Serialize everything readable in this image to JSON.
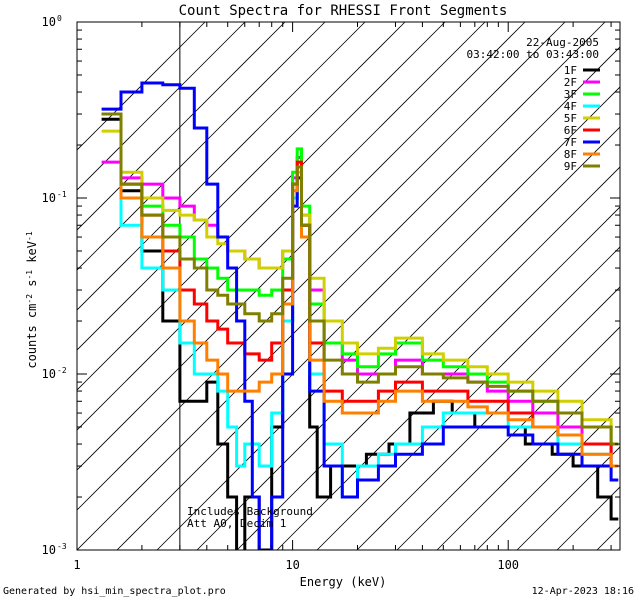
{
  "chart_data": {
    "type": "line",
    "title": "Count Spectra for RHESSI Front Segments",
    "xlabel": "Energy (keV)",
    "ylabel_parts": {
      "a": "counts cm",
      "b": "-2",
      "c": " s",
      "d": "-1",
      "e": " keV",
      "f": "-1"
    },
    "x_scale": "log",
    "y_scale": "log",
    "xlim": [
      1,
      330
    ],
    "ylim": [
      0.001,
      1
    ],
    "x_ticks": [
      {
        "v": 1,
        "label": "1"
      },
      {
        "v": 10,
        "label": "10"
      },
      {
        "v": 100,
        "label": "100"
      }
    ],
    "y_ticks": [
      {
        "v": 1,
        "base": "10",
        "exp": "0"
      },
      {
        "v": 0.1,
        "base": "10",
        "exp": "-1"
      },
      {
        "v": 0.01,
        "base": "10",
        "exp": "-2"
      },
      {
        "v": 0.001,
        "base": "10",
        "exp": "-3"
      }
    ],
    "date_label": "22-Aug-2005",
    "time_label": "03:42:00 to 03:43:00",
    "hatched_below_keV": 3,
    "annotation_lines": [
      "Includes Background",
      "Att A0, Decim 1"
    ],
    "series": [
      {
        "name": "1F",
        "color": "#000000",
        "points": [
          [
            1.3,
            0.28
          ],
          [
            1.6,
            0.11
          ],
          [
            2,
            0.05
          ],
          [
            2.5,
            0.02
          ],
          [
            3,
            0.007
          ],
          [
            3.5,
            0.007
          ],
          [
            4,
            0.009
          ],
          [
            4.5,
            0.004
          ],
          [
            5,
            0.002
          ],
          [
            5.5,
            0.0009
          ],
          [
            6,
            0.002
          ],
          [
            7,
            0.001
          ],
          [
            8,
            0.005
          ],
          [
            9,
            0.02
          ],
          [
            10,
            0.1
          ],
          [
            10.5,
            0.15
          ],
          [
            11,
            0.07
          ],
          [
            12,
            0.005
          ],
          [
            13,
            0.002
          ],
          [
            15,
            0.003
          ],
          [
            18,
            0.003
          ],
          [
            22,
            0.0035
          ],
          [
            28,
            0.004
          ],
          [
            35,
            0.006
          ],
          [
            45,
            0.007
          ],
          [
            55,
            0.006
          ],
          [
            70,
            0.005
          ],
          [
            90,
            0.005
          ],
          [
            120,
            0.004
          ],
          [
            160,
            0.0035
          ],
          [
            200,
            0.003
          ],
          [
            260,
            0.002
          ],
          [
            300,
            0.0015
          ]
        ]
      },
      {
        "name": "2F",
        "color": "#ff00ff",
        "points": [
          [
            1.3,
            0.16
          ],
          [
            1.6,
            0.13
          ],
          [
            2,
            0.12
          ],
          [
            2.5,
            0.1
          ],
          [
            3,
            0.09
          ],
          [
            3.5,
            0.075
          ],
          [
            4,
            0.07
          ],
          [
            4.5,
            0.06
          ],
          [
            5,
            0.05
          ],
          [
            6,
            0.045
          ],
          [
            7,
            0.04
          ],
          [
            8,
            0.04
          ],
          [
            9,
            0.05
          ],
          [
            10,
            0.13
          ],
          [
            10.5,
            0.17
          ],
          [
            11,
            0.08
          ],
          [
            12,
            0.03
          ],
          [
            14,
            0.015
          ],
          [
            17,
            0.012
          ],
          [
            20,
            0.01
          ],
          [
            25,
            0.01
          ],
          [
            30,
            0.012
          ],
          [
            40,
            0.01
          ],
          [
            50,
            0.01
          ],
          [
            65,
            0.009
          ],
          [
            80,
            0.008
          ],
          [
            100,
            0.007
          ],
          [
            130,
            0.006
          ],
          [
            170,
            0.005
          ],
          [
            220,
            0.004
          ],
          [
            300,
            0.003
          ]
        ]
      },
      {
        "name": "3F",
        "color": "#00ff00",
        "points": [
          [
            1.3,
            0.3
          ],
          [
            1.6,
            0.12
          ],
          [
            2,
            0.09
          ],
          [
            2.5,
            0.07
          ],
          [
            3,
            0.06
          ],
          [
            3.5,
            0.045
          ],
          [
            4,
            0.04
          ],
          [
            4.5,
            0.035
          ],
          [
            5,
            0.03
          ],
          [
            6,
            0.03
          ],
          [
            7,
            0.028
          ],
          [
            8,
            0.03
          ],
          [
            9,
            0.045
          ],
          [
            10,
            0.14
          ],
          [
            10.5,
            0.19
          ],
          [
            11,
            0.09
          ],
          [
            12,
            0.025
          ],
          [
            14,
            0.015
          ],
          [
            17,
            0.013
          ],
          [
            20,
            0.011
          ],
          [
            25,
            0.013
          ],
          [
            30,
            0.015
          ],
          [
            40,
            0.012
          ],
          [
            50,
            0.011
          ],
          [
            65,
            0.01
          ],
          [
            80,
            0.009
          ],
          [
            100,
            0.008
          ],
          [
            130,
            0.007
          ],
          [
            170,
            0.006
          ],
          [
            220,
            0.005
          ],
          [
            300,
            0.004
          ]
        ]
      },
      {
        "name": "4F",
        "color": "#00ffff",
        "points": [
          [
            1.3,
            0.3
          ],
          [
            1.6,
            0.07
          ],
          [
            2,
            0.04
          ],
          [
            2.5,
            0.03
          ],
          [
            3,
            0.015
          ],
          [
            3.5,
            0.01
          ],
          [
            4,
            0.01
          ],
          [
            4.5,
            0.008
          ],
          [
            5,
            0.005
          ],
          [
            5.5,
            0.003
          ],
          [
            6,
            0.004
          ],
          [
            7,
            0.003
          ],
          [
            8,
            0.006
          ],
          [
            9,
            0.02
          ],
          [
            10,
            0.1
          ],
          [
            10.5,
            0.14
          ],
          [
            11,
            0.06
          ],
          [
            12,
            0.01
          ],
          [
            14,
            0.004
          ],
          [
            17,
            0.002
          ],
          [
            20,
            0.003
          ],
          [
            25,
            0.0035
          ],
          [
            30,
            0.004
          ],
          [
            40,
            0.005
          ],
          [
            50,
            0.006
          ],
          [
            65,
            0.006
          ],
          [
            80,
            0.006
          ],
          [
            100,
            0.005
          ],
          [
            130,
            0.005
          ],
          [
            170,
            0.004
          ],
          [
            220,
            0.0035
          ],
          [
            300,
            0.003
          ]
        ]
      },
      {
        "name": "5F",
        "color": "#d0d000",
        "points": [
          [
            1.3,
            0.24
          ],
          [
            1.6,
            0.14
          ],
          [
            2,
            0.1
          ],
          [
            2.5,
            0.085
          ],
          [
            3,
            0.08
          ],
          [
            3.5,
            0.075
          ],
          [
            4,
            0.06
          ],
          [
            4.5,
            0.055
          ],
          [
            5,
            0.05
          ],
          [
            6,
            0.045
          ],
          [
            7,
            0.04
          ],
          [
            8,
            0.04
          ],
          [
            9,
            0.05
          ],
          [
            10,
            0.12
          ],
          [
            10.5,
            0.16
          ],
          [
            11,
            0.08
          ],
          [
            12,
            0.035
          ],
          [
            14,
            0.02
          ],
          [
            17,
            0.015
          ],
          [
            20,
            0.013
          ],
          [
            25,
            0.014
          ],
          [
            30,
            0.016
          ],
          [
            40,
            0.013
          ],
          [
            50,
            0.012
          ],
          [
            65,
            0.011
          ],
          [
            80,
            0.01
          ],
          [
            100,
            0.009
          ],
          [
            130,
            0.008
          ],
          [
            170,
            0.007
          ],
          [
            220,
            0.0055
          ],
          [
            300,
            0.004
          ]
        ]
      },
      {
        "name": "6F",
        "color": "#ff0000",
        "points": [
          [
            1.3,
            0.3
          ],
          [
            1.6,
            0.12
          ],
          [
            2,
            0.08
          ],
          [
            2.5,
            0.05
          ],
          [
            3,
            0.03
          ],
          [
            3.5,
            0.025
          ],
          [
            4,
            0.02
          ],
          [
            4.5,
            0.018
          ],
          [
            5,
            0.015
          ],
          [
            6,
            0.013
          ],
          [
            7,
            0.012
          ],
          [
            8,
            0.015
          ],
          [
            9,
            0.03
          ],
          [
            10,
            0.12
          ],
          [
            10.5,
            0.16
          ],
          [
            11,
            0.07
          ],
          [
            12,
            0.015
          ],
          [
            14,
            0.008
          ],
          [
            17,
            0.007
          ],
          [
            20,
            0.007
          ],
          [
            25,
            0.008
          ],
          [
            30,
            0.009
          ],
          [
            40,
            0.008
          ],
          [
            50,
            0.008
          ],
          [
            65,
            0.007
          ],
          [
            80,
            0.007
          ],
          [
            100,
            0.006
          ],
          [
            130,
            0.005
          ],
          [
            170,
            0.0045
          ],
          [
            220,
            0.004
          ],
          [
            300,
            0.003
          ]
        ]
      },
      {
        "name": "7F",
        "color": "#0000ff",
        "points": [
          [
            1.3,
            0.32
          ],
          [
            1.6,
            0.4
          ],
          [
            2,
            0.45
          ],
          [
            2.5,
            0.44
          ],
          [
            3,
            0.42
          ],
          [
            3.5,
            0.25
          ],
          [
            4,
            0.12
          ],
          [
            4.5,
            0.06
          ],
          [
            5,
            0.04
          ],
          [
            5.5,
            0.02
          ],
          [
            6,
            0.007
          ],
          [
            6.5,
            0.002
          ],
          [
            7,
            0.0009
          ],
          [
            8,
            0.002
          ],
          [
            9,
            0.01
          ],
          [
            10,
            0.09
          ],
          [
            10.5,
            0.13
          ],
          [
            11,
            0.06
          ],
          [
            12,
            0.008
          ],
          [
            14,
            0.003
          ],
          [
            17,
            0.002
          ],
          [
            20,
            0.0025
          ],
          [
            25,
            0.003
          ],
          [
            30,
            0.0035
          ],
          [
            40,
            0.004
          ],
          [
            50,
            0.005
          ],
          [
            65,
            0.005
          ],
          [
            80,
            0.005
          ],
          [
            100,
            0.0045
          ],
          [
            130,
            0.004
          ],
          [
            170,
            0.0035
          ],
          [
            220,
            0.003
          ],
          [
            300,
            0.0025
          ]
        ]
      },
      {
        "name": "8F",
        "color": "#ff8000",
        "points": [
          [
            1.3,
            0.3
          ],
          [
            1.6,
            0.1
          ],
          [
            2,
            0.06
          ],
          [
            2.5,
            0.04
          ],
          [
            3,
            0.02
          ],
          [
            3.5,
            0.015
          ],
          [
            4,
            0.012
          ],
          [
            4.5,
            0.01
          ],
          [
            5,
            0.008
          ],
          [
            6,
            0.008
          ],
          [
            7,
            0.009
          ],
          [
            8,
            0.01
          ],
          [
            9,
            0.025
          ],
          [
            10,
            0.11
          ],
          [
            10.5,
            0.15
          ],
          [
            11,
            0.06
          ],
          [
            12,
            0.012
          ],
          [
            14,
            0.007
          ],
          [
            17,
            0.006
          ],
          [
            20,
            0.006
          ],
          [
            25,
            0.007
          ],
          [
            30,
            0.008
          ],
          [
            40,
            0.007
          ],
          [
            50,
            0.007
          ],
          [
            65,
            0.0065
          ],
          [
            80,
            0.006
          ],
          [
            100,
            0.0055
          ],
          [
            130,
            0.005
          ],
          [
            170,
            0.0045
          ],
          [
            220,
            0.0035
          ],
          [
            300,
            0.003
          ]
        ]
      },
      {
        "name": "9F",
        "color": "#808000",
        "points": [
          [
            1.3,
            0.3
          ],
          [
            1.6,
            0.12
          ],
          [
            2,
            0.08
          ],
          [
            2.5,
            0.06
          ],
          [
            3,
            0.045
          ],
          [
            3.5,
            0.04
          ],
          [
            4,
            0.03
          ],
          [
            4.5,
            0.028
          ],
          [
            5,
            0.025
          ],
          [
            6,
            0.022
          ],
          [
            7,
            0.02
          ],
          [
            8,
            0.022
          ],
          [
            9,
            0.035
          ],
          [
            10,
            0.12
          ],
          [
            10.5,
            0.15
          ],
          [
            11,
            0.07
          ],
          [
            12,
            0.02
          ],
          [
            14,
            0.012
          ],
          [
            17,
            0.01
          ],
          [
            20,
            0.009
          ],
          [
            25,
            0.01
          ],
          [
            30,
            0.011
          ],
          [
            40,
            0.01
          ],
          [
            50,
            0.0095
          ],
          [
            65,
            0.009
          ],
          [
            80,
            0.0085
          ],
          [
            100,
            0.008
          ],
          [
            130,
            0.007
          ],
          [
            170,
            0.006
          ],
          [
            220,
            0.005
          ],
          [
            300,
            0.004
          ]
        ]
      }
    ]
  },
  "footer": {
    "left": "Generated by hsi_min_spectra_plot.pro",
    "right": "12-Apr-2023 18:16"
  }
}
